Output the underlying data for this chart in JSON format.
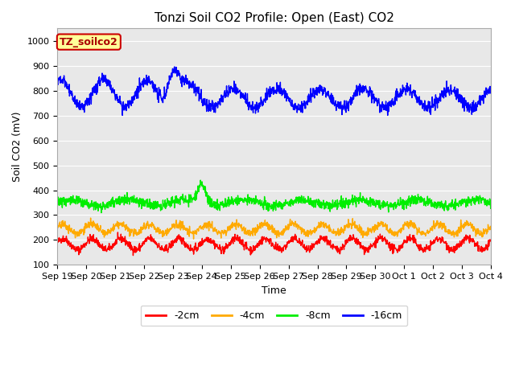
{
  "title": "Tonzi Soil CO2 Profile: Open (East) CO2",
  "xlabel": "Time",
  "ylabel": "Soil CO2 (mV)",
  "ylim": [
    100,
    1050
  ],
  "yticks": [
    100,
    200,
    300,
    400,
    500,
    600,
    700,
    800,
    900,
    1000
  ],
  "legend_label": "TZ_soilco2",
  "series_labels": [
    "-2cm",
    "-4cm",
    "-8cm",
    "-16cm"
  ],
  "series_colors": [
    "#ff0000",
    "#ffaa00",
    "#00ee00",
    "#0000ff"
  ],
  "bg_color": "#e8e8e8",
  "n_points": 1500,
  "start_day": 0,
  "end_day": 15.0,
  "seed": 42,
  "depth_2cm": {
    "base": 183,
    "amp": 22,
    "period": 1.0,
    "noise": 8
  },
  "depth_4cm": {
    "base": 245,
    "amp": 18,
    "period": 1.0,
    "noise": 8
  },
  "depth_8cm": {
    "base": 350,
    "amp": 12,
    "period": 2.0,
    "noise": 10
  },
  "depth_16cm": {
    "base": 790,
    "amp": 45,
    "period": 1.5,
    "noise": 12
  },
  "xtick_labels": [
    "Sep 19",
    "Sep 20",
    "Sep 21",
    "Sep 22",
    "Sep 23",
    "Sep 24",
    "Sep 25",
    "Sep 26",
    "Sep 27",
    "Sep 28",
    "Sep 29",
    "Sep 30",
    "Oct 1",
    "Oct 2",
    "Oct 3",
    "Oct 4"
  ],
  "title_fontsize": 11,
  "axis_fontsize": 9,
  "tick_fontsize": 8,
  "legend_fontsize": 9
}
